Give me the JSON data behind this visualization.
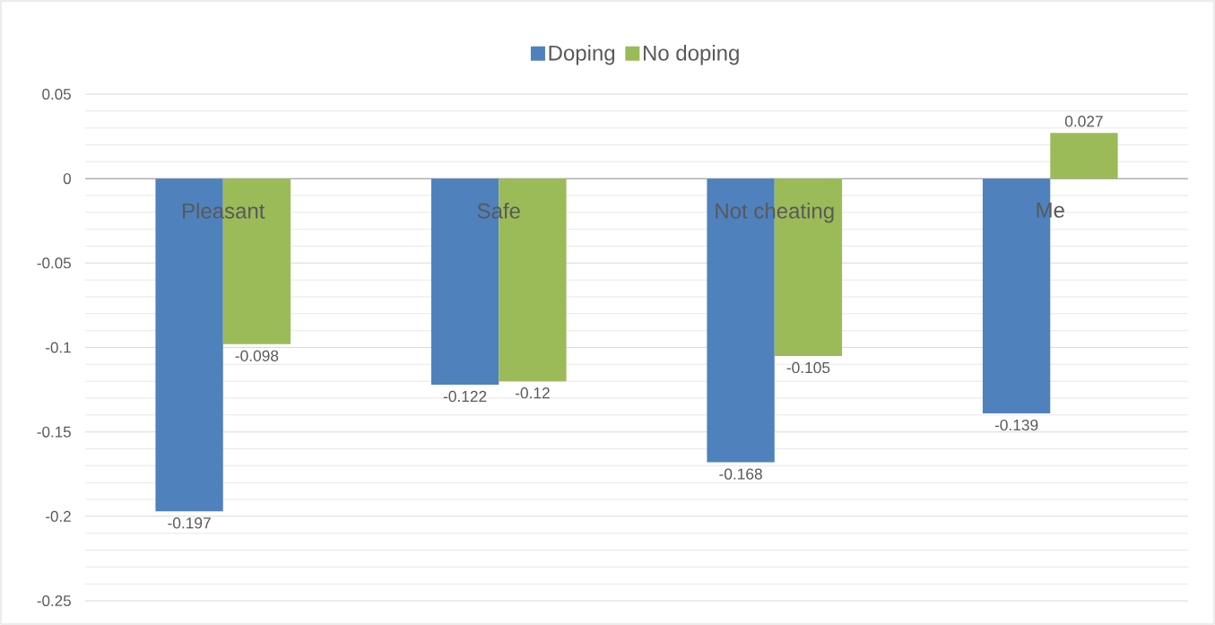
{
  "chart_data": {
    "type": "bar",
    "categories": [
      "Pleasant",
      "Safe",
      "Not cheating",
      "Me"
    ],
    "series": [
      {
        "name": "Doping",
        "color": "#4f81bd",
        "values": [
          -0.197,
          -0.122,
          -0.168,
          -0.139
        ]
      },
      {
        "name": "No doping",
        "color": "#9bbb59",
        "values": [
          -0.098,
          -0.12,
          -0.105,
          0.027
        ]
      }
    ],
    "ylim": [
      -0.25,
      0.05
    ],
    "yticks": [
      -0.25,
      -0.2,
      -0.15,
      -0.1,
      -0.05,
      0,
      0.05
    ],
    "grid": "y",
    "legend": "top",
    "data_labels": true
  }
}
